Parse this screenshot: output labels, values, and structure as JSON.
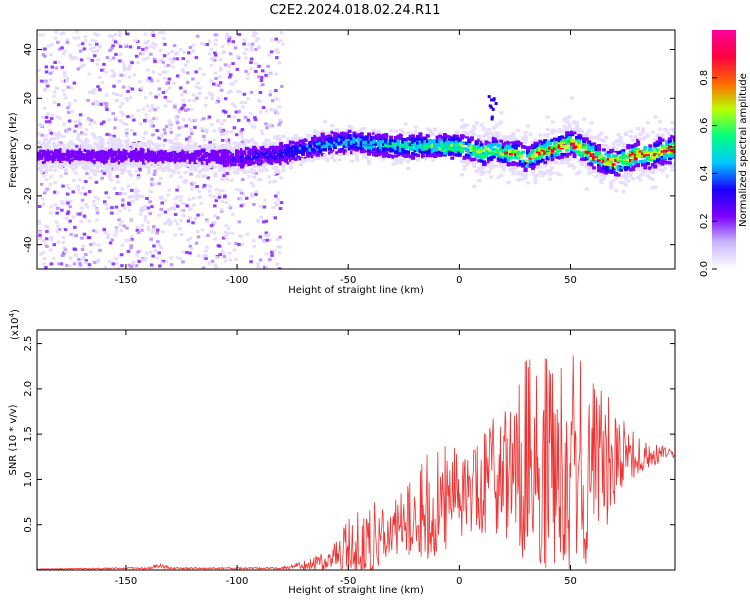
{
  "title": "C2E2.2024.018.02.24.R11",
  "colors": {
    "line": "#ee3333",
    "axis": "#000000",
    "background": "#ffffff"
  },
  "chart_data": [
    {
      "type": "heatmap",
      "name": "spectrogram",
      "xlabel": "Height of straight line (km)",
      "ylabel": "Frequency (Hz)",
      "xlim": [
        -190,
        97
      ],
      "ylim": [
        -50,
        48
      ],
      "xticks": [
        -150,
        -100,
        -50,
        0,
        50
      ],
      "xtick_labels": [
        "-150",
        "-100",
        "-50",
        "0",
        "50"
      ],
      "yticks": [
        -40,
        -20,
        0,
        20,
        40
      ],
      "ytick_labels": [
        "-40",
        "-20",
        "0",
        "20",
        "40"
      ],
      "colorbar": {
        "label": "Normalized spectral amplitude",
        "range": [
          0,
          1
        ],
        "ticks": [
          0.0,
          0.2,
          0.4,
          0.6,
          0.8
        ],
        "tick_labels": [
          "0.0",
          "0.2",
          "0.4",
          "0.6",
          "0.8"
        ],
        "colormap": [
          "#e6ddff",
          "#7a00ff",
          "#2200ff",
          "#00c8ff",
          "#00ff66",
          "#bfff00",
          "#ff0000",
          "#ff0088"
        ]
      },
      "ridge": {
        "x": [
          -190,
          -160,
          -130,
          -100,
          -80,
          -70,
          -60,
          -50,
          -40,
          -30,
          -20,
          -10,
          0,
          5,
          10,
          15,
          20,
          25,
          30,
          35,
          40,
          45,
          50,
          55,
          60,
          65,
          70,
          75,
          80,
          85,
          90,
          97
        ],
        "y": [
          -3,
          -3,
          -3,
          -4,
          -2,
          0,
          2,
          3,
          2,
          1,
          1,
          1,
          1,
          0,
          -2,
          0,
          -2,
          -2,
          -4,
          -2,
          0,
          1,
          2,
          0,
          -3,
          -5,
          -6,
          -4,
          -2,
          -3,
          -1,
          0
        ]
      },
      "noise_region_x": [
        -190,
        -80
      ]
    },
    {
      "type": "line",
      "name": "snr",
      "xlabel": "Height of straight line (km)",
      "ylabel": "SNR (10 * v/v)",
      "scale_label": "(x10",
      "scale_exponent": "4",
      "scale_close": ")",
      "xlim": [
        -190,
        97
      ],
      "ylim": [
        0,
        2.65
      ],
      "xticks": [
        -150,
        -100,
        -50,
        0,
        50
      ],
      "xtick_labels": [
        "-150",
        "-100",
        "-50",
        "0",
        "50"
      ],
      "yticks": [
        0.5,
        1.0,
        1.5,
        2.0,
        2.5
      ],
      "ytick_labels": [
        "0.5",
        "1.0",
        "1.5",
        "2.0",
        "2.5"
      ],
      "envelope": {
        "x": [
          -190,
          -140,
          -135,
          -130,
          -80,
          -70,
          -60,
          -55,
          -50,
          -45,
          -40,
          -35,
          -30,
          -25,
          -20,
          -15,
          -10,
          -5,
          0,
          5,
          10,
          15,
          20,
          25,
          30,
          35,
          40,
          45,
          50,
          55,
          60,
          65,
          70,
          75,
          80,
          85,
          90,
          97
        ],
        "base": [
          0.01,
          0.02,
          0.05,
          0.02,
          0.02,
          0.05,
          0.1,
          0.18,
          0.25,
          0.3,
          0.35,
          0.4,
          0.5,
          0.55,
          0.62,
          0.7,
          0.75,
          0.8,
          0.85,
          0.92,
          0.98,
          1.05,
          1.1,
          1.1,
          1.12,
          1.15,
          1.15,
          1.15,
          1.15,
          1.18,
          1.2,
          1.2,
          1.2,
          1.22,
          1.24,
          1.26,
          1.28,
          1.28
        ],
        "amp": [
          0.005,
          0.01,
          0.03,
          0.01,
          0.01,
          0.05,
          0.1,
          0.15,
          0.35,
          0.4,
          0.45,
          0.3,
          0.35,
          0.35,
          0.5,
          0.6,
          0.6,
          0.6,
          0.55,
          0.5,
          0.6,
          0.65,
          0.8,
          1.0,
          1.2,
          1.2,
          1.25,
          1.3,
          1.3,
          1.2,
          1.0,
          0.8,
          0.6,
          0.4,
          0.25,
          0.15,
          0.1,
          0.05
        ]
      }
    }
  ]
}
